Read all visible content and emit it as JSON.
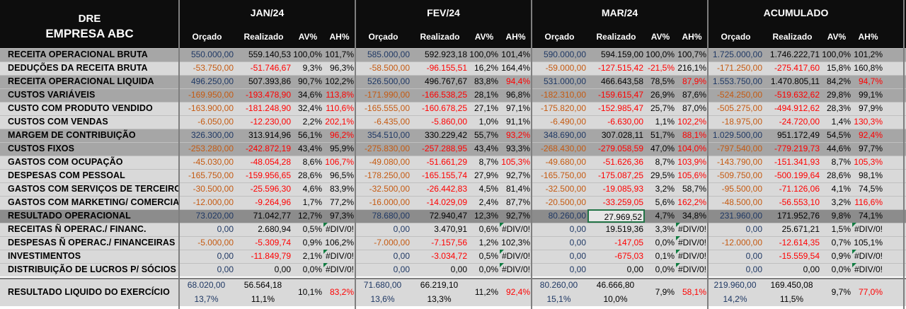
{
  "header": {
    "title_line1": "DRE",
    "title_line2": "EMPRESA ABC",
    "months": [
      "JAN/24",
      "FEV/24",
      "MAR/24",
      "ACUMULADO"
    ],
    "subheaders": [
      "Orçado",
      "Realizado",
      "AV%",
      "AH%"
    ]
  },
  "colors": {
    "header_bg": "#0d0d0d",
    "dark_band": "#a6a6a6",
    "light_band": "#d9d9d9",
    "budget_text": "#1f3864",
    "negative_budget_text": "#c55a11",
    "negative_text": "#ff0000",
    "selection_border": "#217346"
  },
  "rows": [
    {
      "label": "RECEITA OPERACIONAL BRUTA",
      "band": "dark",
      "cells": [
        [
          "550.000,00",
          "559.140,53",
          "100,0%",
          "101,7%"
        ],
        [
          "585.000,00",
          "592.923,18",
          "100,0%",
          "101,4%"
        ],
        [
          "590.000,00",
          "594.159,00",
          "100,0%",
          "100,7%"
        ],
        [
          "1.725.000,00",
          "1.746.222,71",
          "100,0%",
          "101,2%"
        ]
      ]
    },
    {
      "label": "DEDUÇÕES DA RECEITA BRUTA",
      "band": "light",
      "cells": [
        [
          "-53.750,00",
          "-51.746,67",
          "9,3%",
          "96,3%"
        ],
        [
          "-58.500,00",
          "-96.155,51",
          "16,2%",
          "164,4%"
        ],
        [
          "-59.000,00",
          "-127.515,42",
          "-21,5%",
          "216,1%"
        ],
        [
          "-171.250,00",
          "-275.417,60",
          "15,8%",
          "160,8%"
        ]
      ]
    },
    {
      "label": "RECEITA OPERACIONAL LIQUIDA",
      "band": "dark",
      "cells": [
        [
          "496.250,00",
          "507.393,86",
          "90,7%",
          "102,2%"
        ],
        [
          "526.500,00",
          "496.767,67",
          "83,8%",
          "94,4%"
        ],
        [
          "531.000,00",
          "466.643,58",
          "78,5%",
          "87,9%"
        ],
        [
          "1.553.750,00",
          "1.470.805,11",
          "84,2%",
          "94,7%"
        ]
      ]
    },
    {
      "label": "CUSTOS VARIÁVEIS",
      "band": "dark",
      "cells": [
        [
          "-169.950,00",
          "-193.478,90",
          "34,6%",
          "113,8%"
        ],
        [
          "-171.990,00",
          "-166.538,25",
          "28,1%",
          "96,8%"
        ],
        [
          "-182.310,00",
          "-159.615,47",
          "26,9%",
          "87,6%"
        ],
        [
          "-524.250,00",
          "-519.632,62",
          "29,8%",
          "99,1%"
        ]
      ]
    },
    {
      "label": "CUSTO COM PRODUTO VENDIDO",
      "band": "light",
      "cells": [
        [
          "-163.900,00",
          "-181.248,90",
          "32,4%",
          "110,6%"
        ],
        [
          "-165.555,00",
          "-160.678,25",
          "27,1%",
          "97,1%"
        ],
        [
          "-175.820,00",
          "-152.985,47",
          "25,7%",
          "87,0%"
        ],
        [
          "-505.275,00",
          "-494.912,62",
          "28,3%",
          "97,9%"
        ]
      ]
    },
    {
      "label": "CUSTOS COM VENDAS",
      "band": "light",
      "cells": [
        [
          "-6.050,00",
          "-12.230,00",
          "2,2%",
          "202,1%"
        ],
        [
          "-6.435,00",
          "-5.860,00",
          "1,0%",
          "91,1%"
        ],
        [
          "-6.490,00",
          "-6.630,00",
          "1,1%",
          "102,2%"
        ],
        [
          "-18.975,00",
          "-24.720,00",
          "1,4%",
          "130,3%"
        ]
      ]
    },
    {
      "label": "MARGEM DE CONTRIBUIÇÃO",
      "band": "dark",
      "cells": [
        [
          "326.300,00",
          "313.914,96",
          "56,1%",
          "96,2%"
        ],
        [
          "354.510,00",
          "330.229,42",
          "55,7%",
          "93,2%"
        ],
        [
          "348.690,00",
          "307.028,11",
          "51,7%",
          "88,1%"
        ],
        [
          "1.029.500,00",
          "951.172,49",
          "54,5%",
          "92,4%"
        ]
      ]
    },
    {
      "label": "CUSTOS FIXOS",
      "band": "dark",
      "cells": [
        [
          "-253.280,00",
          "-242.872,19",
          "43,4%",
          "95,9%"
        ],
        [
          "-275.830,00",
          "-257.288,95",
          "43,4%",
          "93,3%"
        ],
        [
          "-268.430,00",
          "-279.058,59",
          "47,0%",
          "104,0%"
        ],
        [
          "-797.540,00",
          "-779.219,73",
          "44,6%",
          "97,7%"
        ]
      ]
    },
    {
      "label": "GASTOS COM OCUPAÇÃO",
      "band": "light",
      "cells": [
        [
          "-45.030,00",
          "-48.054,28",
          "8,6%",
          "106,7%"
        ],
        [
          "-49.080,00",
          "-51.661,29",
          "8,7%",
          "105,3%"
        ],
        [
          "-49.680,00",
          "-51.626,36",
          "8,7%",
          "103,9%"
        ],
        [
          "-143.790,00",
          "-151.341,93",
          "8,7%",
          "105,3%"
        ]
      ]
    },
    {
      "label": "DESPESAS COM PESSOAL",
      "band": "light",
      "cells": [
        [
          "-165.750,00",
          "-159.956,65",
          "28,6%",
          "96,5%"
        ],
        [
          "-178.250,00",
          "-165.155,74",
          "27,9%",
          "92,7%"
        ],
        [
          "-165.750,00",
          "-175.087,25",
          "29,5%",
          "105,6%"
        ],
        [
          "-509.750,00",
          "-500.199,64",
          "28,6%",
          "98,1%"
        ]
      ]
    },
    {
      "label": "GASTOS COM SERVIÇOS DE TERCEIRO",
      "band": "light",
      "cells": [
        [
          "-30.500,00",
          "-25.596,30",
          "4,6%",
          "83,9%"
        ],
        [
          "-32.500,00",
          "-26.442,83",
          "4,5%",
          "81,4%"
        ],
        [
          "-32.500,00",
          "-19.085,93",
          "3,2%",
          "58,7%"
        ],
        [
          "-95.500,00",
          "-71.126,06",
          "4,1%",
          "74,5%"
        ]
      ]
    },
    {
      "label": "GASTOS COM MARKETING/ COMERCIAL",
      "band": "light",
      "cells": [
        [
          "-12.000,00",
          "-9.264,96",
          "1,7%",
          "77,2%"
        ],
        [
          "-16.000,00",
          "-14.029,09",
          "2,4%",
          "87,7%"
        ],
        [
          "-20.500,00",
          "-33.259,05",
          "5,6%",
          "162,2%"
        ],
        [
          "-48.500,00",
          "-56.553,10",
          "3,2%",
          "116,6%"
        ]
      ]
    },
    {
      "label": "RESULTADO OPERACIONAL",
      "band": "darker",
      "cells": [
        [
          "73.020,00",
          "71.042,77",
          "12,7%",
          "97,3%"
        ],
        [
          "78.680,00",
          "72.940,47",
          "12,3%",
          "92,7%"
        ],
        [
          "80.260,00",
          "27.969,52",
          "4,7%",
          "34,8%"
        ],
        [
          "231.960,00",
          "171.952,76",
          "9,8%",
          "74,1%"
        ]
      ]
    },
    {
      "label": "RECEITAS Ñ OPERAC./  FINANC.",
      "band": "light",
      "cells": [
        [
          "0,00",
          "2.680,94",
          "0,5%",
          "#DIV/0!"
        ],
        [
          "0,00",
          "3.470,91",
          "0,6%",
          "#DIV/0!"
        ],
        [
          "0,00",
          "19.519,36",
          "3,3%",
          "#DIV/0!"
        ],
        [
          "0,00",
          "25.671,21",
          "1,5%",
          "#DIV/0!"
        ]
      ]
    },
    {
      "label": "DESPESAS Ñ OPERAC./ FINANCEIRAS",
      "band": "light",
      "cells": [
        [
          "-5.000,00",
          "-5.309,74",
          "0,9%",
          "106,2%"
        ],
        [
          "-7.000,00",
          "-7.157,56",
          "1,2%",
          "102,3%"
        ],
        [
          "0,00",
          "-147,05",
          "0,0%",
          "#DIV/0!"
        ],
        [
          "-12.000,00",
          "-12.614,35",
          "0,7%",
          "105,1%"
        ]
      ]
    },
    {
      "label": " INVESTIMENTOS",
      "band": "light",
      "cells": [
        [
          "0,00",
          "-11.849,79",
          "2,1%",
          "#DIV/0!"
        ],
        [
          "0,00",
          "-3.034,72",
          "0,5%",
          "#DIV/0!"
        ],
        [
          "0,00",
          "-675,03",
          "0,1%",
          "#DIV/0!"
        ],
        [
          "0,00",
          "-15.559,54",
          "0,9%",
          "#DIV/0!"
        ]
      ]
    },
    {
      "label": "DISTRIBUIÇÃO DE LUCROS P/ SÓCIOS",
      "band": "light",
      "cells": [
        [
          "0,00",
          "0,00",
          "0,0%",
          "#DIV/0!"
        ],
        [
          "0,00",
          "0,00",
          "0,0%",
          "#DIV/0!"
        ],
        [
          "0,00",
          "0,00",
          "0,0%",
          "#DIV/0!"
        ],
        [
          "0,00",
          "0,00",
          "0,0%",
          "#DIV/0!"
        ]
      ]
    }
  ],
  "final_row": {
    "label": "RESULTADO LIQUIDO DO EXERCÍCIO",
    "cells": [
      {
        "orcado": "68.020,00",
        "orcado_pct": "13,7%",
        "realizado": "56.564,18",
        "realizado_pct": "11,1%",
        "av": "10,1%",
        "ah": "83,2%"
      },
      {
        "orcado": "71.680,00",
        "orcado_pct": "13,6%",
        "realizado": "66.219,10",
        "realizado_pct": "13,3%",
        "av": "11,2%",
        "ah": "92,4%"
      },
      {
        "orcado": "80.260,00",
        "orcado_pct": "15,1%",
        "realizado": "46.666,80",
        "realizado_pct": "10,0%",
        "av": "7,9%",
        "ah": "58,1%"
      },
      {
        "orcado": "219.960,00",
        "orcado_pct": "14,2%",
        "realizado": "169.450,08",
        "realizado_pct": "11,5%",
        "av": "9,7%",
        "ah": "77,0%"
      }
    ]
  }
}
